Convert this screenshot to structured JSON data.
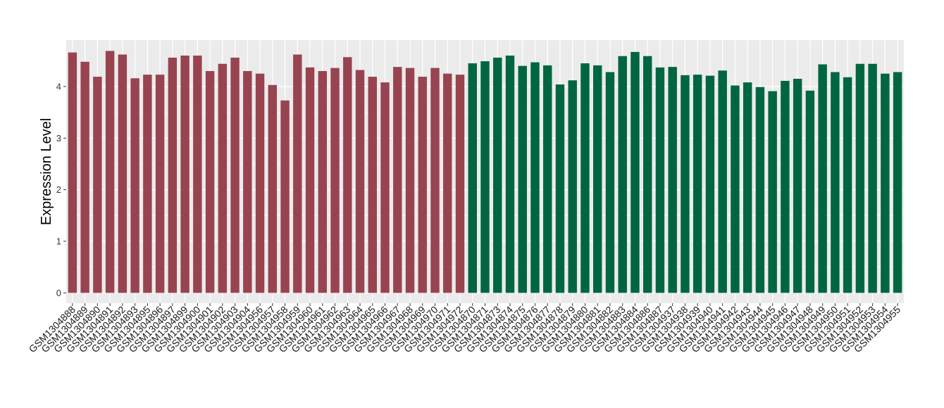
{
  "chart_data": {
    "type": "bar",
    "title": "",
    "xlabel": "",
    "ylabel": "Expression Level",
    "ylim": [
      -0.2,
      4.9
    ],
    "yticks": [
      0,
      1,
      2,
      3,
      4
    ],
    "grid": true,
    "legend": "none",
    "colors": {
      "group1": "#984450",
      "group2": "#006640",
      "panel": "#ebebeb",
      "gridline": "#ffffff"
    },
    "categories": [
      "GSM1304888",
      "GSM1304889",
      "GSM1304890",
      "GSM1304891",
      "GSM1304892",
      "GSM1304893",
      "GSM1304895",
      "GSM1304896",
      "GSM1304897",
      "GSM1304899",
      "GSM1304900",
      "GSM1304901",
      "GSM1304902",
      "GSM1304903",
      "GSM1304904",
      "GSM1304956",
      "GSM1304957",
      "GSM1304958",
      "GSM1304959",
      "GSM1304960",
      "GSM1304961",
      "GSM1304962",
      "GSM1304963",
      "GSM1304964",
      "GSM1304965",
      "GSM1304966",
      "GSM1304967",
      "GSM1304968",
      "GSM1304969",
      "GSM1304970",
      "GSM1304971",
      "GSM1304972",
      "GSM1304870",
      "GSM1304871",
      "GSM1304873",
      "GSM1304874",
      "GSM1304875",
      "GSM1304876",
      "GSM1304877",
      "GSM1304878",
      "GSM1304879",
      "GSM1304880",
      "GSM1304881",
      "GSM1304882",
      "GSM1304883",
      "GSM1304884",
      "GSM1304886",
      "GSM1304887",
      "GSM1304937",
      "GSM1304938",
      "GSM1304939",
      "GSM1304940",
      "GSM1304941",
      "GSM1304942",
      "GSM1304943",
      "GSM1304944",
      "GSM1304945",
      "GSM1304946",
      "GSM1304947",
      "GSM1304948",
      "GSM1304949",
      "GSM1304950",
      "GSM1304951",
      "GSM1304952",
      "GSM1304953",
      "GSM1304954",
      "GSM1304955"
    ],
    "values": [
      4.66,
      4.48,
      4.19,
      4.69,
      4.62,
      4.16,
      4.23,
      4.23,
      4.56,
      4.6,
      4.6,
      4.3,
      4.44,
      4.56,
      4.3,
      4.25,
      4.03,
      3.73,
      4.62,
      4.37,
      4.3,
      4.36,
      4.57,
      4.32,
      4.19,
      4.08,
      4.38,
      4.36,
      4.19,
      4.36,
      4.25,
      4.23,
      4.45,
      4.49,
      4.56,
      4.6,
      4.4,
      4.47,
      4.41,
      4.04,
      4.12,
      4.45,
      4.41,
      4.28,
      4.59,
      4.67,
      4.59,
      4.37,
      4.38,
      4.22,
      4.23,
      4.21,
      4.31,
      4.02,
      4.08,
      3.99,
      3.91,
      4.11,
      4.15,
      3.92,
      4.43,
      4.28,
      4.18,
      4.44,
      4.44,
      4.25,
      4.28
    ],
    "group_sizes": [
      32,
      35
    ]
  }
}
